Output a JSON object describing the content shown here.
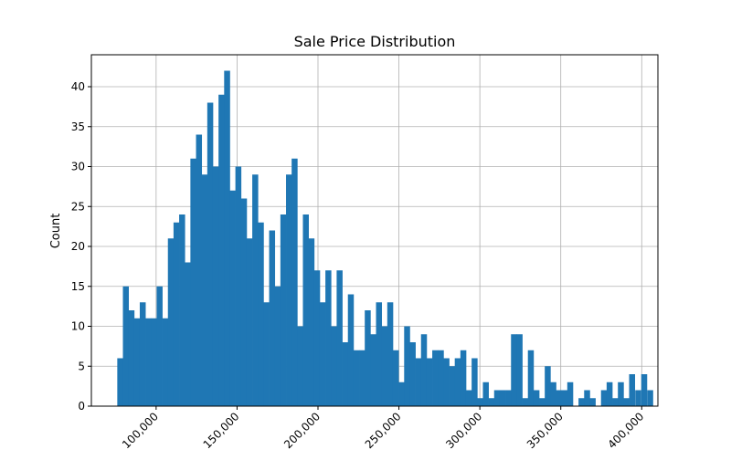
{
  "chart_data": {
    "type": "bar",
    "title": "Sale Price Distribution",
    "xlabel": "",
    "ylabel": "Count",
    "bar_color": "#1f77b4",
    "grid": true,
    "bin_width": 3475,
    "xlim": [
      60000,
      410000
    ],
    "ylim": [
      0,
      44
    ],
    "yticks": [
      0,
      5,
      10,
      15,
      20,
      25,
      30,
      35,
      40
    ],
    "xticks": [
      {
        "value": 100000,
        "label": "100,000"
      },
      {
        "value": 150000,
        "label": "150,000"
      },
      {
        "value": 200000,
        "label": "200,000"
      },
      {
        "value": 250000,
        "label": "250,000"
      },
      {
        "value": 300000,
        "label": "300,000"
      },
      {
        "value": 350000,
        "label": "350,000"
      },
      {
        "value": 400000,
        "label": "400,000"
      }
    ],
    "bin_starts": [
      76000,
      79475,
      82950,
      86425,
      89900,
      93375,
      96850,
      100325,
      103800,
      107275,
      110750,
      114225,
      117700,
      121175,
      124650,
      128125,
      131600,
      135075,
      138550,
      142025,
      145500,
      148975,
      152450,
      155925,
      159400,
      162875,
      166350,
      169825,
      173300,
      176775,
      180250,
      183725,
      187200,
      190675,
      194150,
      197625,
      201100,
      204575,
      208050,
      211525,
      215000,
      218475,
      221950,
      225425,
      228900,
      232375,
      235850,
      239325,
      242800,
      246275,
      249750,
      253225,
      256700,
      260175,
      263650,
      267125,
      270600,
      274075,
      277550,
      281025,
      284500,
      287975,
      291450,
      294925,
      298400,
      301875,
      305350,
      308825,
      312300,
      315775,
      319250,
      322725,
      326200,
      329675,
      333150,
      336625,
      340100,
      343575,
      347050,
      350525,
      354000,
      357475,
      360950,
      364425,
      367900,
      371375,
      374850,
      378325,
      381800,
      385275,
      388750,
      392225,
      395700,
      399175
    ],
    "values": [
      6,
      15,
      12,
      11,
      13,
      11,
      11,
      15,
      11,
      21,
      23,
      24,
      18,
      31,
      34,
      29,
      38,
      30,
      39,
      42,
      27,
      30,
      26,
      21,
      29,
      23,
      13,
      22,
      15,
      24,
      29,
      31,
      10,
      24,
      21,
      17,
      13,
      17,
      10,
      17,
      8,
      14,
      7,
      7,
      12,
      9,
      13,
      10,
      13,
      7,
      3,
      10,
      8,
      6,
      9,
      6,
      7,
      7,
      6,
      5,
      6,
      7,
      2,
      6,
      1,
      3,
      1,
      2,
      2,
      2,
      9,
      9,
      1,
      7,
      2,
      1,
      5,
      3,
      2,
      2,
      3,
      0,
      1,
      2,
      1,
      0,
      2,
      3,
      1,
      3,
      1,
      4,
      0,
      0
    ],
    "tail_bins": [
      {
        "start": 396000,
        "value": 2
      },
      {
        "start": 399700,
        "value": 4
      },
      {
        "start": 403400,
        "value": 2
      }
    ]
  }
}
